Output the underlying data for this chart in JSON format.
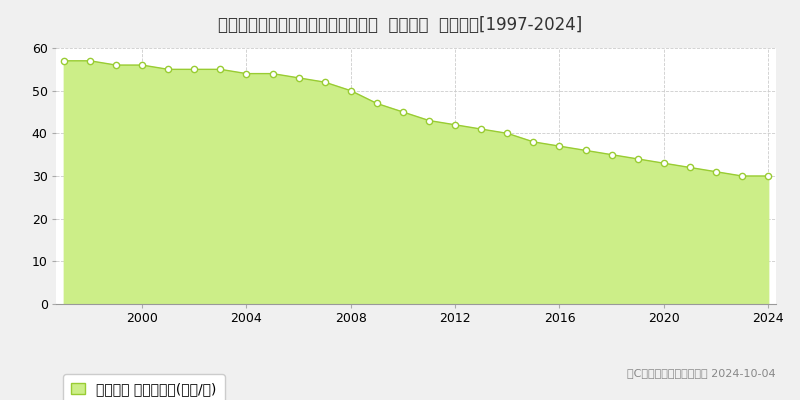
{
  "title": "鹿児島県鹿児島市三和町４８番１５  基準地価  地価推移[1997-2024]",
  "years": [
    1997,
    1998,
    1999,
    2000,
    2001,
    2002,
    2003,
    2004,
    2005,
    2006,
    2007,
    2008,
    2009,
    2010,
    2011,
    2012,
    2013,
    2014,
    2015,
    2016,
    2017,
    2018,
    2019,
    2020,
    2021,
    2022,
    2023,
    2024
  ],
  "values": [
    57,
    57,
    56,
    56,
    55,
    55,
    55,
    54,
    54,
    53,
    52,
    50,
    47,
    45,
    43,
    42,
    41,
    40,
    38,
    37,
    36,
    35,
    34,
    33,
    32,
    31,
    30,
    30
  ],
  "line_color": "#99cc33",
  "fill_color": "#ccee88",
  "marker_color": "#ffffff",
  "marker_edge_color": "#99cc33",
  "background_color": "#f0f0f0",
  "plot_bg_color": "#ffffff",
  "grid_color": "#cccccc",
  "ylim": [
    0,
    60
  ],
  "yticks": [
    0,
    10,
    20,
    30,
    40,
    50,
    60
  ],
  "xticks": [
    2000,
    2004,
    2008,
    2012,
    2016,
    2020,
    2024
  ],
  "legend_label": "基準地価 平均坪単価(万円/坪)",
  "copyright_text": "（C）土地価格ドットコム 2024-10-04",
  "title_fontsize": 12,
  "tick_fontsize": 9,
  "legend_fontsize": 10
}
